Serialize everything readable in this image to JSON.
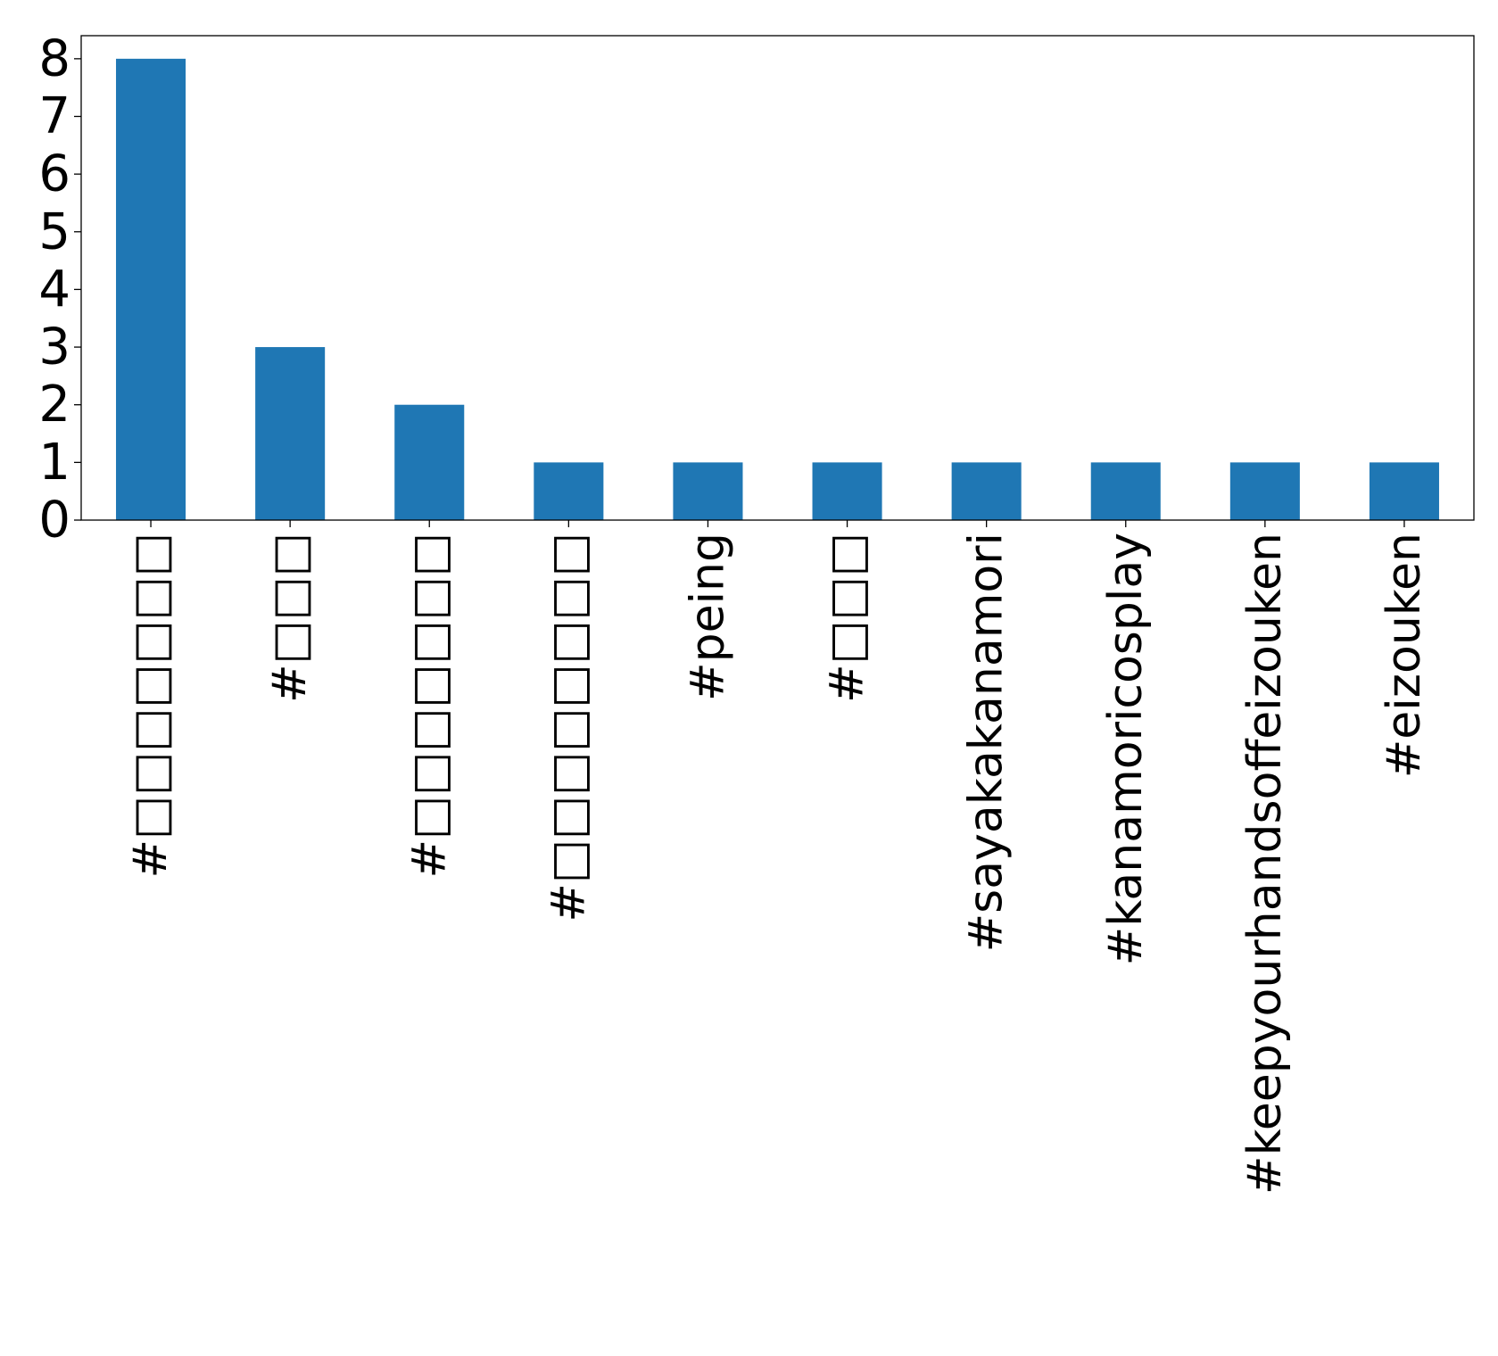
{
  "chart_data": {
    "type": "bar",
    "title": "",
    "xlabel": "",
    "ylabel": "",
    "categories": [
      "#□□□□□□□",
      "#□□□",
      "#□□□□□□□",
      "#□□□□□□□□",
      "#peing",
      "#□□□",
      "#sayakakanamori",
      "#kanamoricosplay",
      "#keepyourhandsoffeizouken",
      "#eizouken"
    ],
    "values": [
      8,
      3,
      2,
      1,
      1,
      1,
      1,
      1,
      1,
      1
    ],
    "ylim": [
      0,
      8.4
    ],
    "yticks": [
      0,
      1,
      2,
      3,
      4,
      5,
      6,
      7,
      8
    ],
    "grid": false,
    "legend": "none",
    "bar_color": "#1f77b4",
    "axis_color": "#000000"
  }
}
